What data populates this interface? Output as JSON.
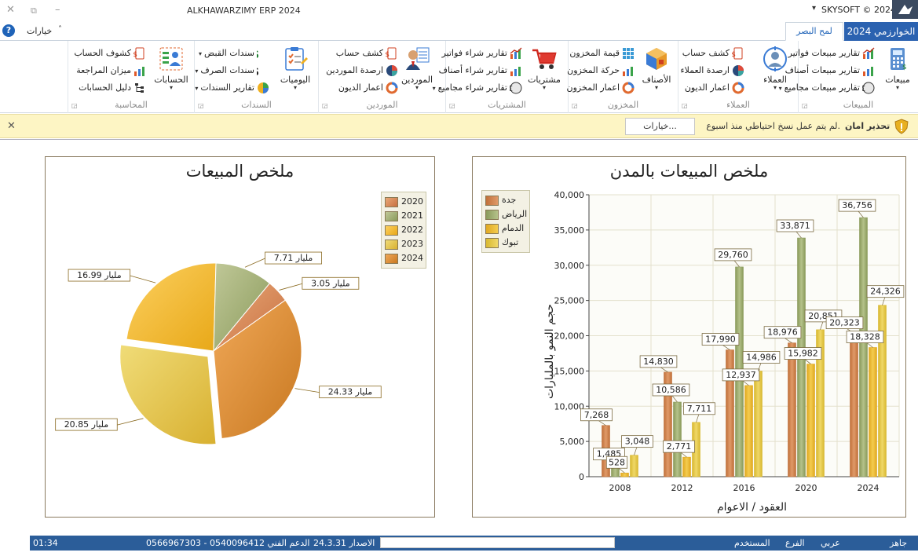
{
  "window": {
    "title": "ALKHAWARZIMY ERP 2024",
    "brand": "SKYSOFT © 2024"
  },
  "tabs": {
    "file_tab": "الخوارزمي 2024",
    "active_tab": "لمح البصر",
    "options_label": "خيارات"
  },
  "ribbon": {
    "groups": {
      "sales": {
        "caption": "المبيعات",
        "big_label": "مبيعات",
        "items": [
          "تقارير مبيعات فواتير",
          "تقارير مبيعات أصناف",
          "تقارير مبيعات مجاميع"
        ]
      },
      "customers": {
        "caption": "العملاء",
        "big_label": "العملاء",
        "items": [
          "كشف حساب",
          "ارصدة العملاء",
          "اعمار الديون"
        ]
      },
      "inventory": {
        "caption": "المخزون",
        "big_label": "الأصناف",
        "items": [
          "قيمة المخزون",
          "حركة المخزون",
          "اعمار المخزون"
        ]
      },
      "purchases": {
        "caption": "المشتريات",
        "big_label": "مشتريات",
        "items": [
          "تقارير شراء فواتير",
          "تقارير شراء أصناف",
          "تقارير شراء مجاميع"
        ]
      },
      "suppliers": {
        "caption": "الموردين",
        "big_label": "الموردين",
        "items": [
          "كشف حساب",
          "ارصدة الموردين",
          "اعمار الديون"
        ]
      },
      "vouchers": {
        "caption": "السندات",
        "big_label": "اليوميات",
        "items": [
          "سندات القبض",
          "سندات الصرف",
          "تقارير السندات"
        ]
      },
      "accounting": {
        "caption": "المحاسبة",
        "big_label": "الحسابات",
        "items": [
          "كشوف الحساب",
          "ميزان المراجعة",
          "دليل الحسابات"
        ]
      }
    }
  },
  "notice": {
    "title": "تحذير امان",
    "message": "لم يتم عمل نسخ احتياطي منذ اسبوع.",
    "options_button": "خيارات..."
  },
  "colors": {
    "jeddah": "#c0703a",
    "riyadh": "#8a9a5b",
    "dammam": "#e0a820",
    "tabuk": "#d8b830",
    "statusbar": "#2b5d99",
    "file_tab": "#2b62b0"
  },
  "chart_data": [
    {
      "type": "bar",
      "title": "ملخص المبيعات بالمدن",
      "xlabel": "العقود / الاعوام",
      "ylabel": "حجم النمو بالمليارات",
      "categories": [
        "2008",
        "2012",
        "2016",
        "2020",
        "2024"
      ],
      "ylim": [
        0,
        40000
      ],
      "yticks": [
        "0",
        "5,000",
        "10,000",
        "15,000",
        "20,000",
        "25,000",
        "30,000",
        "35,000",
        "40,000"
      ],
      "grid": true,
      "legend_position": "top-left",
      "series": [
        {
          "name": "جدة",
          "values": [
            7268,
            14830,
            17990,
            18976,
            20323
          ],
          "labels": [
            "7,268",
            "14,830",
            "17,990",
            "18,976",
            "20,323"
          ]
        },
        {
          "name": "الرياض",
          "values": [
            1485,
            10586,
            29760,
            33871,
            36756
          ],
          "labels": [
            "1,485",
            "10,586",
            "29,760",
            "33,871",
            "36,756"
          ]
        },
        {
          "name": "الدمام",
          "values": [
            528,
            2771,
            12937,
            15982,
            18328
          ],
          "labels": [
            "528",
            "2,771",
            "12,937",
            "15,982",
            "18,328"
          ]
        },
        {
          "name": "تبوك",
          "values": [
            3048,
            7711,
            14986,
            20851,
            24326
          ],
          "labels": [
            "3,048",
            "7,711",
            "14,986",
            "20,851",
            "24,326"
          ]
        }
      ]
    },
    {
      "type": "pie",
      "title": "ملخص المبيعات",
      "legend_position": "top-right",
      "categories": [
        "2020",
        "2021",
        "2022",
        "2023",
        "2024"
      ],
      "values": [
        3.05,
        7.71,
        16.99,
        20.85,
        24.33
      ],
      "labels": [
        "مليار 3.05",
        "مليار 7.71",
        "مليار 16.99",
        "مليار 20.85",
        "مليار 24.33"
      ],
      "exploded": "2023"
    }
  ],
  "status": {
    "ready": "جاهز",
    "language": "عربي",
    "branch": "الفرع",
    "user": "المستخدم",
    "version": "الاصدار 24.3.31",
    "support": "الدعم الفني 0540096412  -  0566967303",
    "time": "01:34"
  }
}
